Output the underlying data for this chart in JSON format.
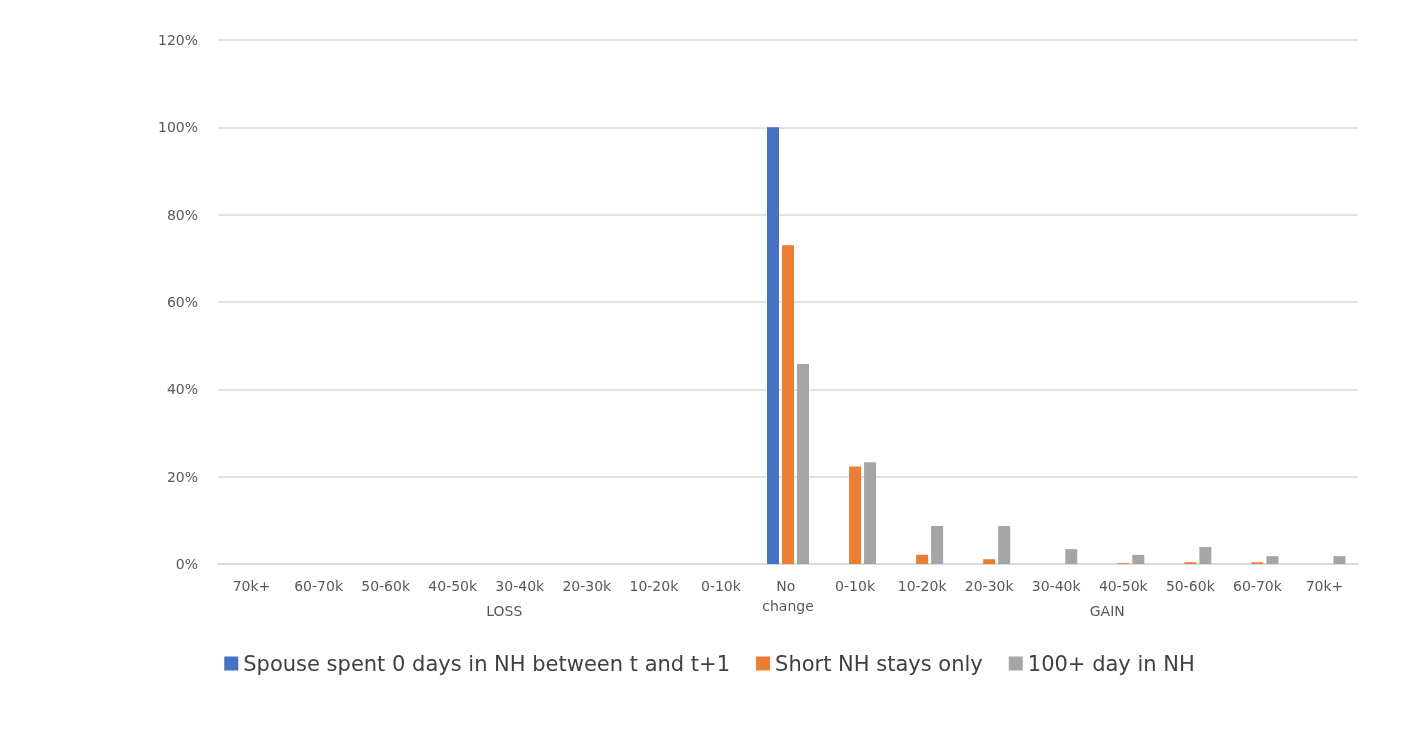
{
  "chart_data": {
    "type": "bar",
    "categories": [
      "70k+",
      "60-70k",
      "50-60k",
      "40-50k",
      "30-40k",
      "20-30k",
      "10-20k",
      "0-10k",
      "No change",
      "0-10k",
      "10-20k",
      "20-30k",
      "30-40k",
      "40-50k",
      "50-60k",
      "60-70k",
      "70k+"
    ],
    "series": [
      {
        "name": "Spouse spent 0 days in NH between t and t+1",
        "color": "#4472c4",
        "values": [
          0,
          0,
          0,
          0,
          0,
          0,
          0,
          0,
          100,
          0,
          0,
          0,
          0,
          0,
          0,
          0,
          0
        ]
      },
      {
        "name": "Short NH stays only",
        "color": "#ed7d31",
        "values": [
          0,
          0,
          0,
          0,
          0,
          0,
          0,
          0,
          73,
          22.3,
          2.1,
          1.1,
          null,
          0.2,
          0.4,
          0.4,
          null
        ]
      },
      {
        "name": "100+ day in NH",
        "color": "#a5a5a5",
        "values": [
          0,
          0,
          0,
          0,
          0,
          0,
          0,
          0,
          45.8,
          23.3,
          8.7,
          8.7,
          3.4,
          2.1,
          3.9,
          1.8,
          1.8
        ]
      }
    ],
    "annotations": [
      "LOSS",
      "GAIN"
    ],
    "ylim": [
      0,
      120
    ],
    "yticks": [
      {
        "value": 0,
        "label": "0%"
      },
      {
        "value": 20,
        "label": "20%"
      },
      {
        "value": 40,
        "label": "40%"
      },
      {
        "value": 60,
        "label": "60%"
      },
      {
        "value": 80,
        "label": "80%"
      },
      {
        "value": 100,
        "label": "100%"
      },
      {
        "value": 120,
        "label": "120%"
      }
    ],
    "grid": "y",
    "legend": "bottom"
  }
}
